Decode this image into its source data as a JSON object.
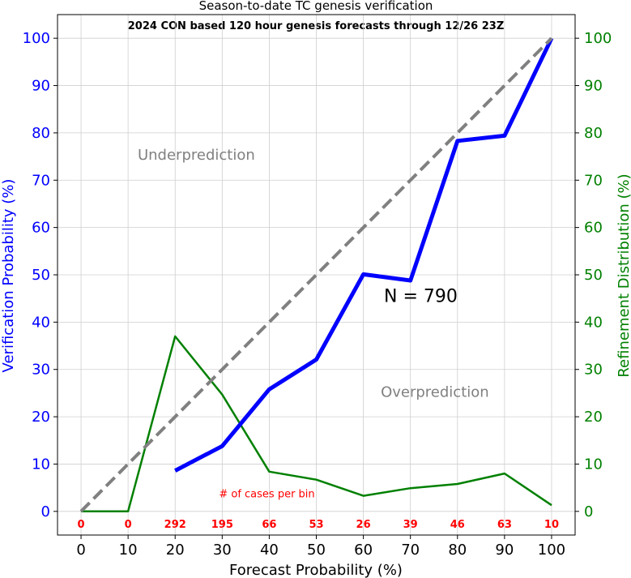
{
  "chart_data": {
    "type": "line",
    "title": "Season-to-date TC genesis verification",
    "subtitle": "2024 CON based 120 hour genesis forecasts through 12/26 23Z",
    "xlabel": "Forecast Probability (%)",
    "ylabel_left": "Verification Probability (%)",
    "ylabel_right": "Refinement Distribution (%)",
    "xlim": [
      -5,
      105
    ],
    "ylim": [
      -5,
      105
    ],
    "xticks": [
      0,
      10,
      20,
      30,
      40,
      50,
      60,
      70,
      80,
      90,
      100
    ],
    "yticks": [
      0,
      10,
      20,
      30,
      40,
      50,
      60,
      70,
      80,
      90,
      100
    ],
    "grid": true,
    "series": [
      {
        "name": "",
        "color": "#0000ff",
        "style": "solid-thick",
        "x": [
          20,
          30,
          40,
          50,
          60,
          70,
          80,
          90,
          100
        ],
        "y": [
          8.6,
          13.8,
          25.8,
          32.1,
          50.1,
          48.8,
          78.3,
          79.4,
          100
        ]
      },
      {
        "name": "",
        "color": "#008000",
        "style": "solid",
        "x": [
          0,
          10,
          20,
          30,
          40,
          50,
          60,
          70,
          80,
          90,
          100
        ],
        "y": [
          0,
          0,
          37.0,
          24.7,
          8.4,
          6.7,
          3.3,
          4.9,
          5.8,
          8.0,
          1.3
        ]
      },
      {
        "name": "",
        "color": "#808080",
        "style": "dashed",
        "x": [
          0,
          100
        ],
        "y": [
          0,
          100
        ]
      }
    ],
    "annotations": [
      {
        "text": "Underprediction",
        "x": 24.5,
        "y": 74.3,
        "color": "#808080"
      },
      {
        "text": "Overprediction",
        "x": 75.2,
        "y": 24.2,
        "color": "#808080"
      },
      {
        "text": "N = 790",
        "x": 72.2,
        "y": 44.3,
        "color": "#000000"
      },
      {
        "text": "# of cases per bin",
        "x": 39.5,
        "y": 3,
        "color": "#ff0000"
      }
    ],
    "case_counts": {
      "x": [
        0,
        10,
        20,
        30,
        40,
        50,
        60,
        70,
        80,
        90,
        100
      ],
      "labels": [
        "0",
        "0",
        "292",
        "195",
        "66",
        "53",
        "26",
        "39",
        "46",
        "63",
        "10"
      ],
      "color": "#ff0000"
    },
    "axis_colors": {
      "left": "#0000ff",
      "right": "#008000",
      "bottom": "#000000"
    }
  }
}
